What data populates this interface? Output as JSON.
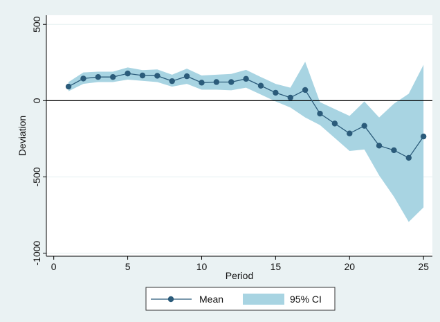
{
  "chart_data": {
    "type": "line",
    "title": "",
    "xlabel": "Period",
    "ylabel": "Deviation",
    "xlim": [
      -0.5,
      25.6
    ],
    "ylim": [
      -1020,
      560
    ],
    "xticks": [
      0,
      5,
      10,
      15,
      20,
      25
    ],
    "yticks": [
      500,
      0,
      -500,
      -1000
    ],
    "reference_line_y": 0,
    "grid": "horizontal",
    "legend_position": "bottom",
    "x": [
      1,
      2,
      3,
      4,
      5,
      6,
      7,
      8,
      9,
      10,
      11,
      12,
      13,
      14,
      15,
      16,
      17,
      18,
      19,
      20,
      21,
      22,
      23,
      24,
      25
    ],
    "series": [
      {
        "name": "Mean",
        "kind": "line-marker",
        "color": "#2b5b7a",
        "values": [
          92,
          145,
          155,
          155,
          178,
          165,
          163,
          128,
          160,
          118,
          122,
          122,
          143,
          98,
          52,
          20,
          70,
          -85,
          -150,
          -215,
          -165,
          -295,
          -325,
          -375,
          -235
        ]
      },
      {
        "name": "95% CI",
        "kind": "band",
        "color": "#a8d4e2",
        "lower": [
          62,
          110,
          122,
          122,
          138,
          130,
          122,
          92,
          110,
          72,
          72,
          68,
          85,
          40,
          -5,
          -45,
          -110,
          -160,
          -245,
          -330,
          -320,
          -490,
          -630,
          -795,
          -700
        ],
        "upper": [
          122,
          185,
          190,
          190,
          218,
          200,
          205,
          170,
          210,
          165,
          170,
          175,
          202,
          155,
          110,
          85,
          255,
          -10,
          -55,
          -100,
          -5,
          -110,
          -20,
          45,
          235
        ]
      }
    ],
    "colors": {
      "background": "#eaf2f3",
      "plot_background": "#ffffff",
      "grid": "#eaf2f3",
      "zero_line": "#000000"
    }
  }
}
